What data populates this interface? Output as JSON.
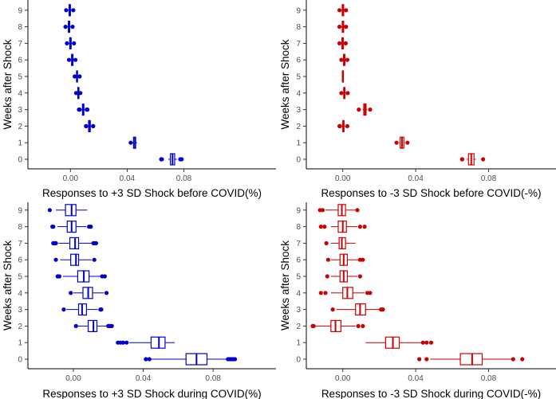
{
  "chart_data": [
    {
      "type": "boxplot",
      "panel": "top-left",
      "color": "#0000cc",
      "xlabel": "Responses to +3 SD Shock before COVID(%)",
      "ylabel": "Weeks after Shock",
      "xlim": [
        -0.03,
        0.145
      ],
      "x_ticks": [
        0.0,
        0.04,
        0.08
      ],
      "x_tick_labels": [
        "0.00",
        "0.04",
        "0.08"
      ],
      "categories": [
        "0",
        "1",
        "2",
        "3",
        "4",
        "5",
        "6",
        "7",
        "8",
        "9"
      ],
      "boxes": [
        {
          "week": "0",
          "min": 0.069,
          "q1": 0.0705,
          "median": 0.072,
          "q3": 0.0735,
          "max": 0.075,
          "outliers": [
            0.064,
            0.0645,
            0.0775,
            0.0785
          ]
        },
        {
          "week": "1",
          "min": 0.044,
          "q1": 0.0445,
          "median": 0.0455,
          "q3": 0.046,
          "max": 0.047,
          "outliers": [
            0.0425
          ]
        },
        {
          "week": "2",
          "min": 0.012,
          "q1": 0.0128,
          "median": 0.0134,
          "q3": 0.014,
          "max": 0.0148,
          "outliers": [
            0.011,
            0.011,
            0.016,
            0.016
          ]
        },
        {
          "week": "3",
          "min": 0.0075,
          "q1": 0.0085,
          "median": 0.009,
          "q3": 0.0095,
          "max": 0.0105,
          "outliers": [
            0.006,
            0.0065,
            0.0115,
            0.012
          ]
        },
        {
          "week": "4",
          "min": 0.0045,
          "q1": 0.0052,
          "median": 0.0056,
          "q3": 0.006,
          "max": 0.0066,
          "outliers": [
            0.004,
            0.007
          ]
        },
        {
          "week": "5",
          "min": 0.0035,
          "q1": 0.0043,
          "median": 0.0046,
          "q3": 0.005,
          "max": 0.0058,
          "outliers": [
            0.003,
            0.0065
          ]
        },
        {
          "week": "6",
          "min": 0.0,
          "q1": 0.0008,
          "median": 0.0013,
          "q3": 0.0018,
          "max": 0.0026,
          "outliers": [
            -0.001,
            0.0035
          ]
        },
        {
          "week": "7",
          "min": -0.0015,
          "q1": -0.0005,
          "median": 0.0,
          "q3": 0.0005,
          "max": 0.0015,
          "outliers": [
            -0.0025,
            0.0025
          ]
        },
        {
          "week": "8",
          "min": -0.0025,
          "q1": -0.0015,
          "median": -0.001,
          "q3": -0.0005,
          "max": 0.0005,
          "outliers": [
            -0.0035,
            0.0015
          ]
        },
        {
          "week": "9",
          "min": -0.002,
          "q1": -0.001,
          "median": -0.0005,
          "q3": 0.0,
          "max": 0.001,
          "outliers": [
            -0.003,
            0.002
          ]
        }
      ]
    },
    {
      "type": "boxplot",
      "panel": "top-right",
      "color": "#cc0000",
      "xlabel": "Responses to -3 SD Shock before COVID(-%)",
      "ylabel": "Weeks after Shock",
      "xlim": [
        -0.02,
        0.117
      ],
      "x_ticks": [
        0.0,
        0.04,
        0.08
      ],
      "x_tick_labels": [
        "0.00",
        "0.04",
        "0.08"
      ],
      "categories": [
        "0",
        "1",
        "2",
        "3",
        "4",
        "5",
        "6",
        "7",
        "8",
        "9"
      ],
      "boxes": [
        {
          "week": "0",
          "min": 0.068,
          "q1": 0.069,
          "median": 0.0705,
          "q3": 0.072,
          "max": 0.073,
          "outliers": [
            0.0655,
            0.0655,
            0.077
          ]
        },
        {
          "week": "1",
          "min": 0.031,
          "q1": 0.0315,
          "median": 0.0325,
          "q3": 0.0335,
          "max": 0.034,
          "outliers": [
            0.0295,
            0.0355
          ]
        },
        {
          "week": "2",
          "min": -0.0005,
          "q1": 0.0,
          "median": 0.0003,
          "q3": 0.0007,
          "max": 0.0012,
          "outliers": [
            -0.0018,
            -0.0015,
            0.0025
          ]
        },
        {
          "week": "3",
          "min": 0.011,
          "q1": 0.0115,
          "median": 0.0122,
          "q3": 0.0128,
          "max": 0.0134,
          "outliers": [
            0.0088,
            0.015
          ]
        },
        {
          "week": "4",
          "min": 0.0,
          "q1": 0.0005,
          "median": 0.0008,
          "q3": 0.0012,
          "max": 0.0018,
          "outliers": [
            -0.0008,
            0.0027
          ]
        },
        {
          "week": "5",
          "min": -0.0005,
          "q1": -0.0002,
          "median": 0.0,
          "q3": 0.0002,
          "max": 0.0005,
          "outliers": []
        },
        {
          "week": "6",
          "min": 0.0,
          "q1": 0.0004,
          "median": 0.0008,
          "q3": 0.0012,
          "max": 0.0018,
          "outliers": [
            -0.0008,
            0.0025
          ]
        },
        {
          "week": "7",
          "min": -0.001,
          "q1": -0.0005,
          "median": -0.0001,
          "q3": 0.0003,
          "max": 0.0008,
          "outliers": [
            -0.0018,
            0.0016
          ]
        },
        {
          "week": "8",
          "min": -0.0008,
          "q1": -0.0003,
          "median": 0.0001,
          "q3": 0.0005,
          "max": 0.001,
          "outliers": [
            -0.0018,
            0.0018
          ]
        },
        {
          "week": "9",
          "min": -0.0008,
          "q1": -0.0003,
          "median": 0.0001,
          "q3": 0.0005,
          "max": 0.001,
          "outliers": [
            -0.0018,
            0.0018
          ]
        }
      ]
    },
    {
      "type": "boxplot",
      "panel": "bottom-left",
      "color": "#0000cc",
      "xlabel": "Responses to +3 SD Shock during COVID(%)",
      "ylabel": "Weeks after Shock",
      "xlim": [
        -0.026,
        0.116
      ],
      "x_ticks": [
        0.0,
        0.04,
        0.08
      ],
      "x_tick_labels": [
        "0.00",
        "0.04",
        "0.08"
      ],
      "categories": [
        "0",
        "1",
        "2",
        "3",
        "4",
        "5",
        "6",
        "7",
        "8",
        "9"
      ],
      "boxes": [
        {
          "week": "0",
          "min": 0.043,
          "q1": 0.0645,
          "median": 0.0705,
          "q3": 0.0765,
          "max": 0.091,
          "outliers": [
            0.0415,
            0.0435,
            0.0885,
            0.0895,
            0.0905,
            0.0915,
            0.0925
          ]
        },
        {
          "week": "1",
          "min": 0.032,
          "q1": 0.0445,
          "median": 0.049,
          "q3": 0.0525,
          "max": 0.058,
          "outliers": [
            0.0255,
            0.027,
            0.0285,
            0.0305
          ]
        },
        {
          "week": "2",
          "min": 0.002,
          "q1": 0.0085,
          "median": 0.0115,
          "q3": 0.0135,
          "max": 0.019,
          "outliers": [
            0.0015,
            0.02,
            0.021,
            0.022
          ]
        },
        {
          "week": "3",
          "min": -0.004,
          "q1": 0.003,
          "median": 0.005,
          "q3": 0.0075,
          "max": 0.014,
          "outliers": [
            -0.0055,
            0.0155,
            0.016
          ]
        },
        {
          "week": "4",
          "min": 0.0,
          "q1": 0.0055,
          "median": 0.0085,
          "q3": 0.011,
          "max": 0.0175,
          "outliers": [
            -0.0015,
            0.019
          ]
        },
        {
          "week": "5",
          "min": -0.006,
          "q1": 0.0025,
          "median": 0.006,
          "q3": 0.009,
          "max": 0.016,
          "outliers": [
            -0.009,
            -0.008,
            0.0165,
            0.018
          ]
        },
        {
          "week": "6",
          "min": -0.0075,
          "q1": -0.0015,
          "median": 0.0015,
          "q3": 0.003,
          "max": 0.0105,
          "outliers": [
            -0.01,
            0.012
          ]
        },
        {
          "week": "7",
          "min": -0.0085,
          "q1": -0.002,
          "median": 0.001,
          "q3": 0.003,
          "max": 0.0105,
          "outliers": [
            -0.0115,
            -0.011,
            -0.0105,
            -0.01,
            0.0115,
            0.012,
            0.013
          ]
        },
        {
          "week": "8",
          "min": -0.009,
          "q1": -0.0035,
          "median": -0.001,
          "q3": 0.0015,
          "max": 0.0075,
          "outliers": [
            -0.012,
            -0.0115,
            0.009,
            0.01
          ]
        },
        {
          "week": "9",
          "min": -0.01,
          "q1": -0.0045,
          "median": -0.001,
          "q3": 0.0015,
          "max": 0.008,
          "outliers": [
            -0.0135
          ]
        }
      ]
    },
    {
      "type": "boxplot",
      "panel": "bottom-right",
      "color": "#cc0000",
      "xlabel": "Responses to -3 SD Shock during COVID(-%)",
      "ylabel": "Weeks after Shock",
      "xlim": [
        -0.02,
        0.117
      ],
      "x_ticks": [
        0.0,
        0.04,
        0.08
      ],
      "x_tick_labels": [
        "0.00",
        "0.04",
        "0.08"
      ],
      "categories": [
        "0",
        "1",
        "2",
        "3",
        "4",
        "5",
        "6",
        "7",
        "8",
        "9"
      ],
      "boxes": [
        {
          "week": "0",
          "min": 0.048,
          "q1": 0.0645,
          "median": 0.071,
          "q3": 0.0765,
          "max": 0.093,
          "outliers": [
            0.042,
            0.046,
            0.0935,
            0.0985
          ]
        },
        {
          "week": "1",
          "min": 0.0125,
          "q1": 0.0235,
          "median": 0.0275,
          "q3": 0.031,
          "max": 0.043,
          "outliers": [
            0.044,
            0.046,
            0.0485
          ]
        },
        {
          "week": "2",
          "min": -0.015,
          "q1": -0.0065,
          "median": -0.004,
          "q3": -0.001,
          "max": 0.007,
          "outliers": [
            -0.0165,
            -0.016,
            0.0085,
            0.011
          ]
        },
        {
          "week": "3",
          "min": -0.0035,
          "q1": 0.007,
          "median": 0.0095,
          "q3": 0.0125,
          "max": 0.02,
          "outliers": [
            -0.0055,
            0.021,
            0.022
          ]
        },
        {
          "week": "4",
          "min": -0.0065,
          "q1": 0.0,
          "median": 0.0025,
          "q3": 0.0055,
          "max": 0.012,
          "outliers": [
            -0.012,
            -0.0095,
            0.0135,
            0.015
          ]
        },
        {
          "week": "5",
          "min": -0.0065,
          "q1": -0.0015,
          "median": 0.0005,
          "q3": 0.0025,
          "max": 0.008,
          "outliers": [
            -0.0085,
            0.0095
          ]
        },
        {
          "week": "6",
          "min": -0.0065,
          "q1": -0.0015,
          "median": 0.0005,
          "q3": 0.0025,
          "max": 0.0085,
          "outliers": [
            -0.008,
            0.0095,
            0.011
          ]
        },
        {
          "week": "7",
          "min": -0.0065,
          "q1": -0.002,
          "median": -0.0005,
          "q3": 0.0015,
          "max": 0.007,
          "outliers": [
            -0.009
          ]
        },
        {
          "week": "8",
          "min": -0.0065,
          "q1": -0.0025,
          "median": 0.0,
          "q3": 0.002,
          "max": 0.008,
          "outliers": [
            -0.012,
            -0.01,
            0.0095,
            0.012
          ]
        },
        {
          "week": "9",
          "min": -0.0095,
          "q1": -0.0025,
          "median": -0.0005,
          "q3": 0.0015,
          "max": 0.0075,
          "outliers": [
            -0.0125,
            -0.011,
            0.008
          ]
        }
      ]
    }
  ]
}
